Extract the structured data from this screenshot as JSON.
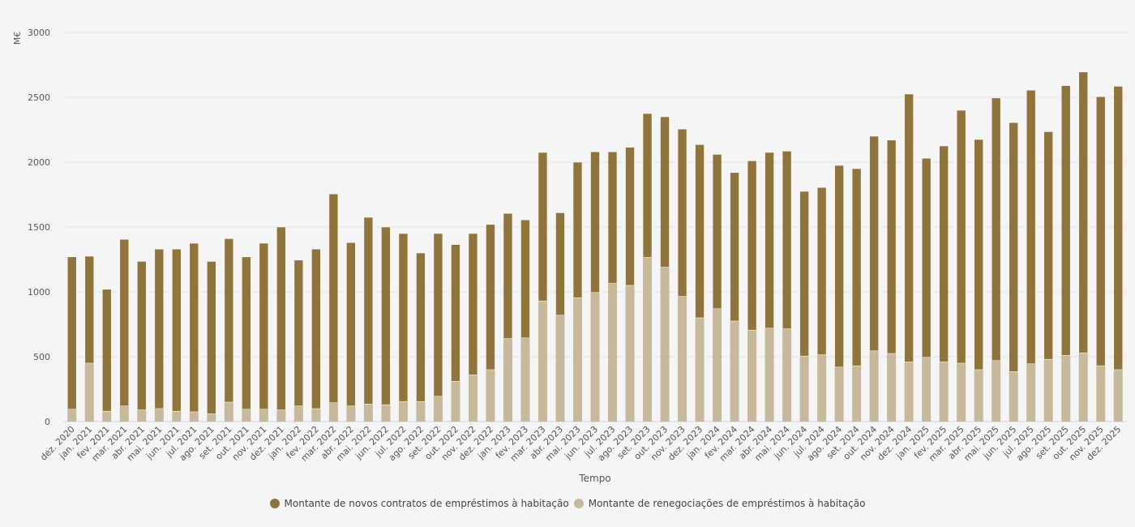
{
  "chart_data": {
    "type": "bar",
    "stacked": true,
    "title": "",
    "xlabel": "Tempo",
    "ylabel": "M€",
    "ylim": [
      0,
      3000
    ],
    "yticks": [
      0,
      500,
      1000,
      1500,
      2000,
      2500,
      3000
    ],
    "grid": true,
    "legend_position": "bottom",
    "categories": [
      "dez. 2020",
      "jan. 2021",
      "fev. 2021",
      "mar. 2021",
      "abr. 2021",
      "mai. 2021",
      "jun. 2021",
      "jul. 2021",
      "ago. 2021",
      "set. 2021",
      "out. 2021",
      "nov. 2021",
      "dez. 2021",
      "jan. 2022",
      "fev. 2022",
      "mar. 2022",
      "abr. 2022",
      "mai. 2022",
      "jun. 2022",
      "jul. 2022",
      "ago. 2022",
      "set. 2022",
      "out. 2022",
      "nov. 2022",
      "dez. 2022",
      "jan. 2023",
      "fev. 2023",
      "mar. 2023",
      "abr. 2023",
      "mai. 2023",
      "jun. 2023",
      "jul. 2023",
      "ago. 2023",
      "set. 2023",
      "out. 2023",
      "nov. 2023",
      "dez. 2023",
      "jan. 2024",
      "fev. 2024",
      "mar. 2024",
      "abr. 2024",
      "mai. 2024",
      "jun. 2024",
      "jul. 2024",
      "ago. 2024",
      "set. 2024",
      "out. 2024",
      "nov. 2024",
      "dez. 2024",
      "jan. 2025",
      "fev. 2025",
      "mar. 2025",
      "abr. 2025",
      "mai. 2025",
      "jun. 2025",
      "jul. 2025",
      "ago. 2025",
      "set. 2025",
      "out. 2025",
      "nov. 2025",
      "dez. 2025"
    ],
    "series": [
      {
        "name": "Montante de renegociações de empréstimos à habitação",
        "color": "#c7b99c",
        "values": [
          95,
          450,
          80,
          120,
          90,
          100,
          80,
          75,
          60,
          150,
          95,
          95,
          90,
          120,
          100,
          145,
          120,
          135,
          130,
          155,
          155,
          195,
          310,
          360,
          400,
          640,
          645,
          930,
          820,
          955,
          995,
          1065,
          1050,
          1265,
          1190,
          965,
          800,
          870,
          775,
          705,
          720,
          715,
          505,
          515,
          420,
          430,
          545,
          525,
          460,
          495,
          460,
          450,
          400,
          470,
          385,
          445,
          480,
          510,
          530,
          430,
          400
        ]
      },
      {
        "name": "Montante de novos contratos de empréstimos à habitação",
        "color": "#8f743d",
        "values": [
          1175,
          825,
          940,
          1285,
          1145,
          1230,
          1250,
          1300,
          1175,
          1260,
          1175,
          1280,
          1410,
          1125,
          1230,
          1610,
          1260,
          1440,
          1370,
          1295,
          1145,
          1255,
          1055,
          1090,
          1120,
          965,
          910,
          1145,
          790,
          1045,
          1085,
          1015,
          1065,
          1110,
          1160,
          1290,
          1335,
          1190,
          1145,
          1305,
          1355,
          1370,
          1270,
          1290,
          1555,
          1520,
          1655,
          1645,
          2065,
          1535,
          1665,
          1950,
          1775,
          2025,
          1920,
          2110,
          1755,
          2080,
          2165,
          2075,
          2185
        ]
      }
    ]
  },
  "legend": {
    "items": [
      {
        "label": "Montante de novos contratos de empréstimos à habitação",
        "color": "#8f743d"
      },
      {
        "label": "Montante de renegociações de empréstimos à habitação",
        "color": "#c7b99c"
      }
    ]
  }
}
